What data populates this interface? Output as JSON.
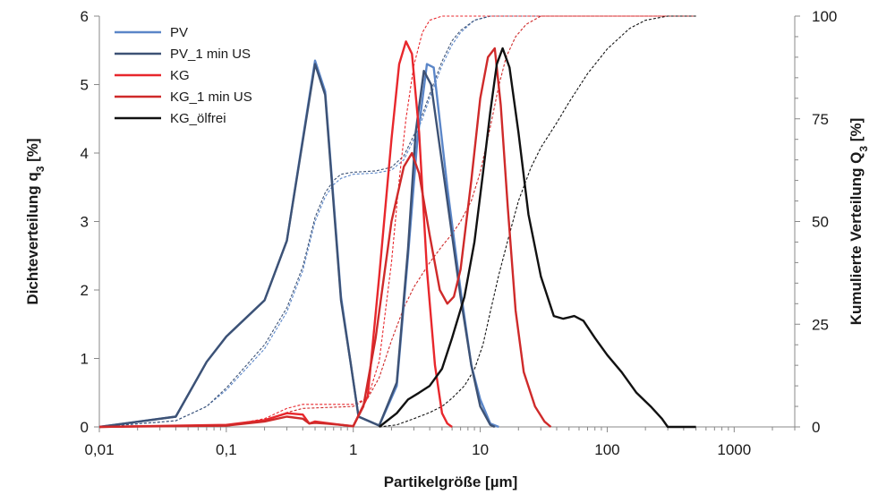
{
  "chart_data": {
    "type": "line",
    "x_scale": "log",
    "xlim": [
      0.01,
      3000
    ],
    "ylim_left": [
      0,
      6
    ],
    "ylim_right": [
      0,
      100
    ],
    "xlabel": "Partikelgröße [µm]",
    "ylabel_left": "Dichteverteilung q",
    "ylabel_left_sub": "3",
    "ylabel_left_unit": " [%]",
    "ylabel_right": "Kumulierte Verteilung Q",
    "ylabel_right_sub": "3",
    "ylabel_right_unit": " [%]",
    "x_ticks": [
      {
        "value": 0.01,
        "label": "0,01"
      },
      {
        "value": 0.1,
        "label": "0,1"
      },
      {
        "value": 1,
        "label": "1"
      },
      {
        "value": 10,
        "label": "10"
      },
      {
        "value": 100,
        "label": "100"
      },
      {
        "value": 1000,
        "label": "1000"
      }
    ],
    "y_left_ticks": [
      {
        "value": 0,
        "label": "0"
      },
      {
        "value": 1,
        "label": "1"
      },
      {
        "value": 2,
        "label": "2"
      },
      {
        "value": 3,
        "label": "3"
      },
      {
        "value": 4,
        "label": "4"
      },
      {
        "value": 5,
        "label": "5"
      },
      {
        "value": 6,
        "label": "6"
      }
    ],
    "y_right_ticks": [
      {
        "value": 0,
        "label": "0"
      },
      {
        "value": 25,
        "label": "25"
      },
      {
        "value": 50,
        "label": "50"
      },
      {
        "value": 75,
        "label": "75"
      },
      {
        "value": 100,
        "label": "100"
      }
    ],
    "legend_position": "top-left",
    "density_series": [
      {
        "name": "PV",
        "color": "#5b86c8",
        "points": [
          [
            0.01,
            0
          ],
          [
            0.04,
            0.15
          ],
          [
            0.07,
            0.95
          ],
          [
            0.1,
            1.32
          ],
          [
            0.2,
            1.85
          ],
          [
            0.3,
            2.72
          ],
          [
            0.5,
            5.35
          ],
          [
            0.6,
            4.9
          ],
          [
            0.8,
            1.9
          ],
          [
            0.95,
            0.95
          ],
          [
            1.1,
            0.15
          ],
          [
            1.6,
            0.02
          ],
          [
            2.2,
            0.6
          ],
          [
            2.7,
            2.5
          ],
          [
            3.2,
            4.2
          ],
          [
            3.8,
            5.3
          ],
          [
            4.3,
            5.25
          ],
          [
            5.5,
            3.5
          ],
          [
            7.0,
            2.0
          ],
          [
            8.5,
            0.9
          ],
          [
            10,
            0.4
          ],
          [
            12,
            0.05
          ],
          [
            14,
            0
          ]
        ]
      },
      {
        "name": "PV_1 min US",
        "color": "#3d5275",
        "points": [
          [
            0.01,
            0
          ],
          [
            0.04,
            0.15
          ],
          [
            0.07,
            0.95
          ],
          [
            0.1,
            1.32
          ],
          [
            0.2,
            1.85
          ],
          [
            0.3,
            2.72
          ],
          [
            0.5,
            5.3
          ],
          [
            0.6,
            4.85
          ],
          [
            0.8,
            1.85
          ],
          [
            0.95,
            0.95
          ],
          [
            1.1,
            0.15
          ],
          [
            1.6,
            0.02
          ],
          [
            2.2,
            0.65
          ],
          [
            2.7,
            2.6
          ],
          [
            3.1,
            4.3
          ],
          [
            3.6,
            5.2
          ],
          [
            4.1,
            5.0
          ],
          [
            5.5,
            3.3
          ],
          [
            7.0,
            1.9
          ],
          [
            8.5,
            0.9
          ],
          [
            10,
            0.3
          ],
          [
            12,
            0.03
          ],
          [
            13,
            0
          ]
        ]
      },
      {
        "name": "KG",
        "color": "#e8272c",
        "points": [
          [
            0.01,
            0
          ],
          [
            0.1,
            0.03
          ],
          [
            0.2,
            0.1
          ],
          [
            0.3,
            0.2
          ],
          [
            0.4,
            0.18
          ],
          [
            0.45,
            0.05
          ],
          [
            0.5,
            0.08
          ],
          [
            0.6,
            0.06
          ],
          [
            0.8,
            0.03
          ],
          [
            1.0,
            0.01
          ],
          [
            1.3,
            0.45
          ],
          [
            1.6,
            2.2
          ],
          [
            2.0,
            4.2
          ],
          [
            2.3,
            5.3
          ],
          [
            2.6,
            5.63
          ],
          [
            2.9,
            5.45
          ],
          [
            3.3,
            4.3
          ],
          [
            3.8,
            2.3
          ],
          [
            4.4,
            0.9
          ],
          [
            5.0,
            0.2
          ],
          [
            5.5,
            0.05
          ],
          [
            6,
            0
          ]
        ]
      },
      {
        "name": "KG_1 min US",
        "color": "#cf2a2a",
        "points": [
          [
            0.01,
            0
          ],
          [
            0.1,
            0.02
          ],
          [
            0.2,
            0.08
          ],
          [
            0.3,
            0.15
          ],
          [
            0.4,
            0.12
          ],
          [
            0.45,
            0.05
          ],
          [
            0.5,
            0.06
          ],
          [
            0.6,
            0.05
          ],
          [
            0.8,
            0.03
          ],
          [
            1.0,
            0.01
          ],
          [
            1.2,
            0.3
          ],
          [
            1.5,
            1.3
          ],
          [
            2.0,
            3.0
          ],
          [
            2.5,
            3.8
          ],
          [
            2.9,
            4.0
          ],
          [
            3.3,
            3.7
          ],
          [
            4.0,
            2.8
          ],
          [
            4.8,
            2.0
          ],
          [
            5.5,
            1.8
          ],
          [
            6.2,
            1.9
          ],
          [
            7.0,
            2.3
          ],
          [
            8.5,
            3.6
          ],
          [
            10,
            4.8
          ],
          [
            11.5,
            5.4
          ],
          [
            13,
            5.53
          ],
          [
            14.5,
            4.7
          ],
          [
            16.5,
            3.2
          ],
          [
            19,
            1.7
          ],
          [
            22,
            0.8
          ],
          [
            27,
            0.3
          ],
          [
            32,
            0.08
          ],
          [
            36,
            0
          ]
        ]
      },
      {
        "name": "KG_ölfrei",
        "color": "#111111",
        "points": [
          [
            1.6,
            0
          ],
          [
            2.2,
            0.2
          ],
          [
            2.7,
            0.4
          ],
          [
            3.3,
            0.5
          ],
          [
            4.0,
            0.6
          ],
          [
            5.0,
            0.85
          ],
          [
            6.0,
            1.3
          ],
          [
            7.5,
            1.9
          ],
          [
            9.0,
            2.7
          ],
          [
            10.5,
            3.7
          ],
          [
            12,
            4.6
          ],
          [
            13.5,
            5.3
          ],
          [
            15,
            5.53
          ],
          [
            17,
            5.25
          ],
          [
            20,
            4.3
          ],
          [
            24,
            3.1
          ],
          [
            30,
            2.2
          ],
          [
            38,
            1.62
          ],
          [
            45,
            1.58
          ],
          [
            55,
            1.62
          ],
          [
            65,
            1.55
          ],
          [
            80,
            1.3
          ],
          [
            100,
            1.05
          ],
          [
            130,
            0.8
          ],
          [
            170,
            0.5
          ],
          [
            220,
            0.3
          ],
          [
            270,
            0.12
          ],
          [
            300,
            0
          ],
          [
            500,
            0
          ]
        ]
      }
    ],
    "cumulative_series": [
      {
        "color": "#5b86c8",
        "points": [
          [
            0.01,
            0
          ],
          [
            0.04,
            1.5
          ],
          [
            0.07,
            5
          ],
          [
            0.1,
            9
          ],
          [
            0.2,
            19
          ],
          [
            0.3,
            28
          ],
          [
            0.4,
            38
          ],
          [
            0.5,
            50
          ],
          [
            0.6,
            56
          ],
          [
            0.7,
            59
          ],
          [
            0.8,
            60.5
          ],
          [
            1.0,
            61.5
          ],
          [
            1.5,
            61.8
          ],
          [
            2.0,
            62.5
          ],
          [
            2.5,
            65
          ],
          [
            3.0,
            70
          ],
          [
            3.5,
            75
          ],
          [
            4.0,
            80
          ],
          [
            5.0,
            88
          ],
          [
            6.0,
            93
          ],
          [
            7.0,
            96
          ],
          [
            9.0,
            99
          ],
          [
            12,
            100
          ],
          [
            500,
            100
          ]
        ]
      },
      {
        "color": "#3d5275",
        "points": [
          [
            0.01,
            0
          ],
          [
            0.04,
            1.5
          ],
          [
            0.07,
            5
          ],
          [
            0.1,
            9.5
          ],
          [
            0.2,
            20
          ],
          [
            0.3,
            29
          ],
          [
            0.4,
            39
          ],
          [
            0.5,
            51
          ],
          [
            0.6,
            57
          ],
          [
            0.7,
            60
          ],
          [
            0.8,
            61.5
          ],
          [
            1.0,
            62
          ],
          [
            1.5,
            62.3
          ],
          [
            2.0,
            63.2
          ],
          [
            2.5,
            66
          ],
          [
            3.0,
            71
          ],
          [
            3.5,
            76
          ],
          [
            4.0,
            81
          ],
          [
            5.0,
            89
          ],
          [
            6.0,
            94
          ],
          [
            7.0,
            96.5
          ],
          [
            9.0,
            99
          ],
          [
            12,
            100
          ],
          [
            500,
            100
          ]
        ]
      },
      {
        "color": "#e8272c",
        "points": [
          [
            0.01,
            0
          ],
          [
            0.1,
            0.3
          ],
          [
            0.2,
            2
          ],
          [
            0.3,
            4.5
          ],
          [
            0.4,
            5.5
          ],
          [
            0.7,
            5.5
          ],
          [
            1.0,
            5.5
          ],
          [
            1.3,
            7
          ],
          [
            1.6,
            16
          ],
          [
            2.0,
            40
          ],
          [
            2.3,
            60
          ],
          [
            2.6,
            75
          ],
          [
            3.0,
            88
          ],
          [
            3.5,
            96
          ],
          [
            4.0,
            99
          ],
          [
            5.0,
            100
          ],
          [
            500,
            100
          ]
        ]
      },
      {
        "color": "#cf2a2a",
        "points": [
          [
            0.01,
            0
          ],
          [
            0.1,
            0.2
          ],
          [
            0.2,
            1.5
          ],
          [
            0.3,
            3.5
          ],
          [
            0.4,
            4.5
          ],
          [
            0.7,
            4.8
          ],
          [
            1.0,
            5
          ],
          [
            1.3,
            7
          ],
          [
            1.6,
            12
          ],
          [
            2.0,
            21
          ],
          [
            2.5,
            29
          ],
          [
            3.0,
            34
          ],
          [
            4.0,
            40
          ],
          [
            5.0,
            44
          ],
          [
            6.0,
            47
          ],
          [
            7.0,
            50
          ],
          [
            8.5,
            55
          ],
          [
            10,
            62
          ],
          [
            12,
            73
          ],
          [
            14,
            83
          ],
          [
            16,
            90
          ],
          [
            19,
            95
          ],
          [
            23,
            98
          ],
          [
            30,
            100
          ],
          [
            500,
            100
          ]
        ]
      },
      {
        "color": "#111111",
        "points": [
          [
            1.6,
            0
          ],
          [
            2.2,
            0.5
          ],
          [
            3.0,
            2
          ],
          [
            4.0,
            3.5
          ],
          [
            5.0,
            5
          ],
          [
            6.0,
            7
          ],
          [
            7.5,
            10
          ],
          [
            9.0,
            14
          ],
          [
            10.5,
            20
          ],
          [
            12,
            28
          ],
          [
            14,
            37
          ],
          [
            17,
            47
          ],
          [
            20,
            55
          ],
          [
            25,
            63
          ],
          [
            30,
            68
          ],
          [
            40,
            74
          ],
          [
            50,
            79
          ],
          [
            70,
            86
          ],
          [
            100,
            92
          ],
          [
            150,
            97
          ],
          [
            200,
            99
          ],
          [
            300,
            100
          ],
          [
            500,
            100
          ]
        ]
      }
    ]
  }
}
